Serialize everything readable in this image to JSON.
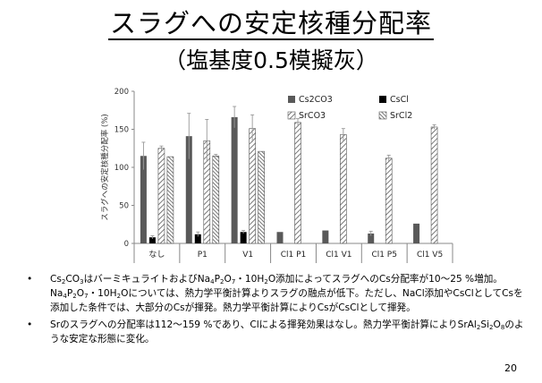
{
  "slide": {
    "title": "スラグへの安定核種分配率",
    "subtitle": "（塩基度0.5模擬灰）",
    "page_number": "20"
  },
  "bullets": [
    {
      "parts": [
        "Cs",
        "2",
        "CO",
        "3",
        "はバーミキュライトおよびNa",
        "4",
        "P",
        "2",
        "O",
        "7",
        "・10H",
        "2",
        "O添加によってスラグへのCs分配率が10～25 %増加。Na",
        "4",
        "P",
        "2",
        "O",
        "7",
        "・10H",
        "2",
        "Oについては、熱力学平衡計算よりスラグの融点が低下。ただし、NaCl添加やCsClとしてCsを添加した条件では、大部分のCsが揮発。熱力学平衡計算によりCsがCsClとして揮発。"
      ]
    },
    {
      "parts": [
        "Srのスラグへの分配率は112～159 %であり、Clによる揮発効果はなし。熱力学平衡計算によりSrAl",
        "2",
        "Si",
        "2",
        "O",
        "8",
        "のような安定な形態に変化。"
      ]
    }
  ],
  "colors": {
    "cs2co3": "#595959",
    "cscl": "#000000",
    "srco3_hatch": "#595959",
    "srcl2_hatch": "#404040",
    "axis": "#888888",
    "error_bar": "#999999"
  },
  "chart_data": {
    "type": "bar",
    "ylabel": "スラグへの安定核種分配率 (%)",
    "ylim": [
      0,
      200
    ],
    "yticks": [
      "0",
      "50",
      "100",
      "150",
      "200"
    ],
    "categories": [
      "なし",
      "P1",
      "V1",
      "Cl1 P1",
      "Cl1 V1",
      "Cl1 P5",
      "Cl1 V5"
    ],
    "legend_position": "top-right",
    "series": [
      {
        "name": "Cs2CO3",
        "values": [
          115,
          141,
          166,
          15,
          17,
          13,
          26
        ],
        "errors": [
          18,
          30,
          14,
          0,
          0,
          3,
          0
        ]
      },
      {
        "name": "CsCl",
        "values": [
          8,
          12,
          15,
          null,
          null,
          null,
          null
        ],
        "errors": [
          2,
          3,
          2,
          0,
          0,
          0,
          0
        ]
      },
      {
        "name": "SrCO3",
        "values": [
          125,
          135,
          151,
          159,
          143,
          112,
          153
        ],
        "errors": [
          3,
          28,
          18,
          5,
          8,
          4,
          3
        ]
      },
      {
        "name": "SrCl2",
        "values": [
          114,
          115,
          121,
          null,
          null,
          null,
          null
        ],
        "errors": [
          0,
          2,
          0,
          0,
          0,
          0,
          0
        ]
      }
    ]
  }
}
